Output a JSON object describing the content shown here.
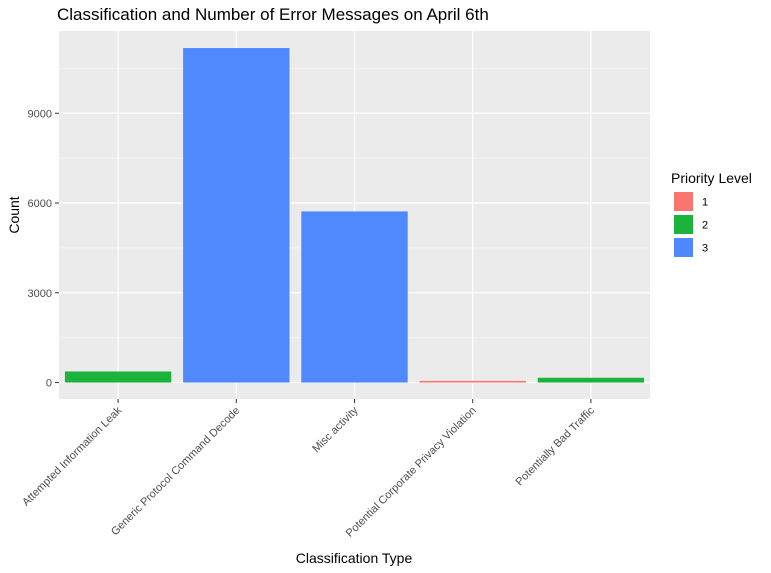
{
  "chart_data": {
    "type": "bar",
    "title": "Classification and Number of Error Messages on April 6th",
    "xlabel": "Classification Type",
    "ylabel": "Count",
    "categories": [
      "Attempted Information Leak",
      "Generic Protocol Command Decode",
      "Misc activity",
      "Potential Corporate Privacy Violation",
      "Potentially Bad Traffic"
    ],
    "values": [
      370,
      11180,
      5720,
      55,
      160
    ],
    "priority": [
      "2",
      "3",
      "3",
      "1",
      "2"
    ],
    "ylim": [
      -550,
      11750
    ],
    "yticks": [
      0,
      3000,
      6000,
      9000
    ],
    "ytick_labels": [
      "0",
      "3000",
      "6000",
      "9000"
    ],
    "grid": true,
    "legend": {
      "title": "Priority Level",
      "position": "right",
      "entries": [
        {
          "label": "1",
          "color": "#F8766D"
        },
        {
          "label": "2",
          "color": "#1CB33D"
        },
        {
          "label": "3",
          "color": "#5088FF"
        }
      ]
    }
  }
}
